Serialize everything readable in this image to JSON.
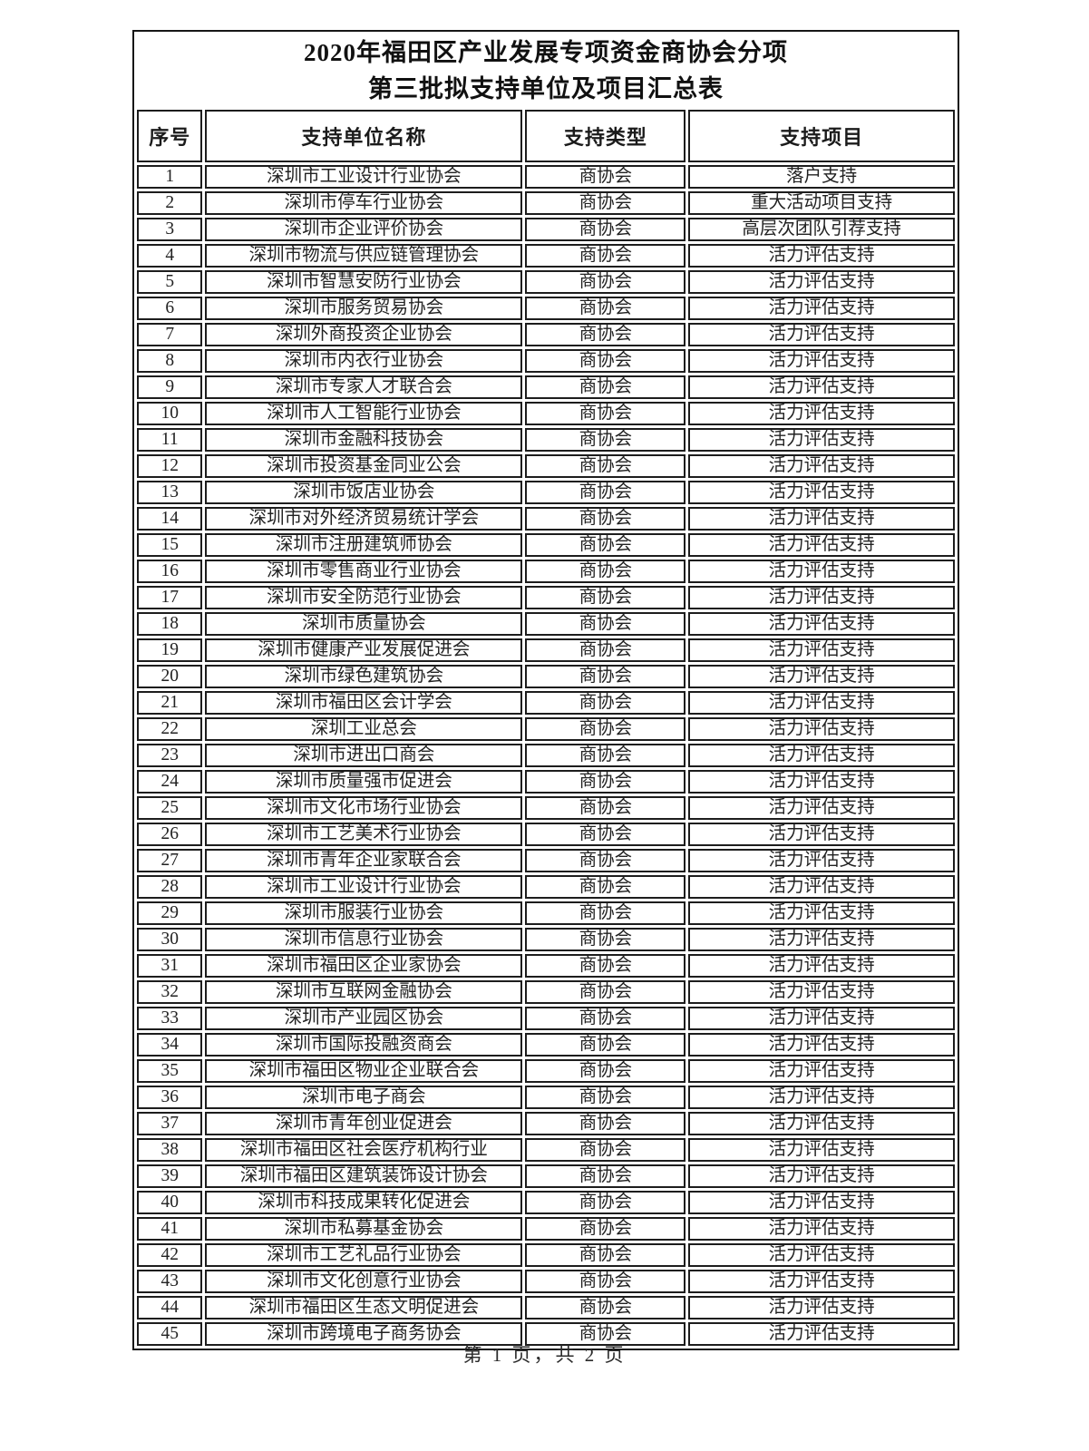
{
  "page": {
    "title_line1": "2020年福田区产业发展专项资金商协会分项",
    "title_line2": "第三批拟支持单位及项目汇总表",
    "footer": "第 1 页，共 2 页"
  },
  "table": {
    "columns": [
      "序号",
      "支持单位名称",
      "支持类型",
      "支持项目"
    ],
    "rows": [
      [
        "1",
        "深圳市工业设计行业协会",
        "商协会",
        "落户支持"
      ],
      [
        "2",
        "深圳市停车行业协会",
        "商协会",
        "重大活动项目支持"
      ],
      [
        "3",
        "深圳市企业评价协会",
        "商协会",
        "高层次团队引荐支持"
      ],
      [
        "4",
        "深圳市物流与供应链管理协会",
        "商协会",
        "活力评估支持"
      ],
      [
        "5",
        "深圳市智慧安防行业协会",
        "商协会",
        "活力评估支持"
      ],
      [
        "6",
        "深圳市服务贸易协会",
        "商协会",
        "活力评估支持"
      ],
      [
        "7",
        "深圳外商投资企业协会",
        "商协会",
        "活力评估支持"
      ],
      [
        "8",
        "深圳市内衣行业协会",
        "商协会",
        "活力评估支持"
      ],
      [
        "9",
        "深圳市专家人才联合会",
        "商协会",
        "活力评估支持"
      ],
      [
        "10",
        "深圳市人工智能行业协会",
        "商协会",
        "活力评估支持"
      ],
      [
        "11",
        "深圳市金融科技协会",
        "商协会",
        "活力评估支持"
      ],
      [
        "12",
        "深圳市投资基金同业公会",
        "商协会",
        "活力评估支持"
      ],
      [
        "13",
        "深圳市饭店业协会",
        "商协会",
        "活力评估支持"
      ],
      [
        "14",
        "深圳市对外经济贸易统计学会",
        "商协会",
        "活力评估支持"
      ],
      [
        "15",
        "深圳市注册建筑师协会",
        "商协会",
        "活力评估支持"
      ],
      [
        "16",
        "深圳市零售商业行业协会",
        "商协会",
        "活力评估支持"
      ],
      [
        "17",
        "深圳市安全防范行业协会",
        "商协会",
        "活力评估支持"
      ],
      [
        "18",
        "深圳市质量协会",
        "商协会",
        "活力评估支持"
      ],
      [
        "19",
        "深圳市健康产业发展促进会",
        "商协会",
        "活力评估支持"
      ],
      [
        "20",
        "深圳市绿色建筑协会",
        "商协会",
        "活力评估支持"
      ],
      [
        "21",
        "深圳市福田区会计学会",
        "商协会",
        "活力评估支持"
      ],
      [
        "22",
        "深圳工业总会",
        "商协会",
        "活力评估支持"
      ],
      [
        "23",
        "深圳市进出口商会",
        "商协会",
        "活力评估支持"
      ],
      [
        "24",
        "深圳市质量强市促进会",
        "商协会",
        "活力评估支持"
      ],
      [
        "25",
        "深圳市文化市场行业协会",
        "商协会",
        "活力评估支持"
      ],
      [
        "26",
        "深圳市工艺美术行业协会",
        "商协会",
        "活力评估支持"
      ],
      [
        "27",
        "深圳市青年企业家联合会",
        "商协会",
        "活力评估支持"
      ],
      [
        "28",
        "深圳市工业设计行业协会",
        "商协会",
        "活力评估支持"
      ],
      [
        "29",
        "深圳市服装行业协会",
        "商协会",
        "活力评估支持"
      ],
      [
        "30",
        "深圳市信息行业协会",
        "商协会",
        "活力评估支持"
      ],
      [
        "31",
        "深圳市福田区企业家协会",
        "商协会",
        "活力评估支持"
      ],
      [
        "32",
        "深圳市互联网金融协会",
        "商协会",
        "活力评估支持"
      ],
      [
        "33",
        "深圳市产业园区协会",
        "商协会",
        "活力评估支持"
      ],
      [
        "34",
        "深圳市国际投融资商会",
        "商协会",
        "活力评估支持"
      ],
      [
        "35",
        "深圳市福田区物业企业联合会",
        "商协会",
        "活力评估支持"
      ],
      [
        "36",
        "深圳市电子商会",
        "商协会",
        "活力评估支持"
      ],
      [
        "37",
        "深圳市青年创业促进会",
        "商协会",
        "活力评估支持"
      ],
      [
        "38",
        "深圳市福田区社会医疗机构行业",
        "商协会",
        "活力评估支持"
      ],
      [
        "39",
        "深圳市福田区建筑装饰设计协会",
        "商协会",
        "活力评估支持"
      ],
      [
        "40",
        "深圳市科技成果转化促进会",
        "商协会",
        "活力评估支持"
      ],
      [
        "41",
        "深圳市私募基金协会",
        "商协会",
        "活力评估支持"
      ],
      [
        "42",
        "深圳市工艺礼品行业协会",
        "商协会",
        "活力评估支持"
      ],
      [
        "43",
        "深圳市文化创意行业协会",
        "商协会",
        "活力评估支持"
      ],
      [
        "44",
        "深圳市福田区生态文明促进会",
        "商协会",
        "活力评估支持"
      ],
      [
        "45",
        "深圳市跨境电子商务协会",
        "商协会",
        "活力评估支持"
      ]
    ]
  }
}
